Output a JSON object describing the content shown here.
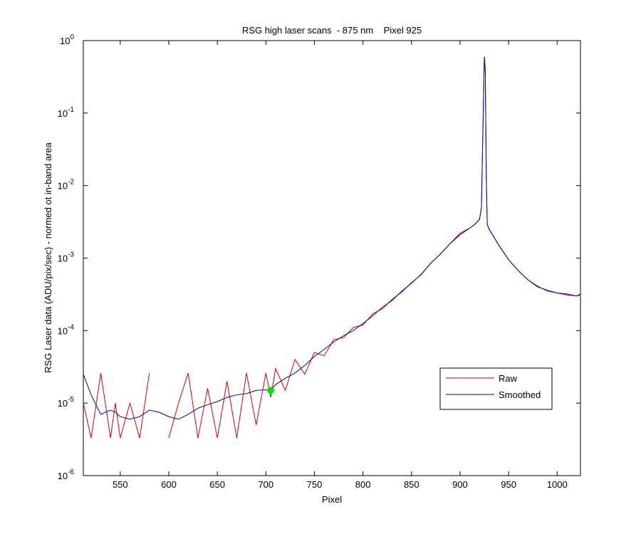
{
  "chart_data": {
    "type": "line",
    "title": "RSG high laser scans  - 875 nm    Pixel 925",
    "xlabel": "Pixel",
    "ylabel": "RSG Laser data (ADU/pix/sec) - normed ot in-band area",
    "log_y": true,
    "grid": false,
    "legend": "right",
    "xlim": [
      512,
      1024
    ],
    "ylim": [
      1e-06,
      1
    ],
    "xticks": [
      550,
      600,
      650,
      700,
      750,
      800,
      850,
      900,
      950,
      1000
    ],
    "yticks": [
      {
        "value": 1e-06,
        "label": "10",
        "exponent": "-6"
      },
      {
        "value": 1e-05,
        "label": "10",
        "exponent": "-5"
      },
      {
        "value": 0.0001,
        "label": "10",
        "exponent": "-4"
      },
      {
        "value": 0.001,
        "label": "10",
        "exponent": "-3"
      },
      {
        "value": 0.01,
        "label": "10",
        "exponent": "-2"
      },
      {
        "value": 0.1,
        "label": "10",
        "exponent": "-1"
      },
      {
        "value": 1,
        "label": "10",
        "exponent": "0"
      }
    ],
    "x": [
      512,
      520,
      530,
      540,
      545,
      550,
      560,
      570,
      580,
      590,
      600,
      610,
      620,
      630,
      640,
      650,
      660,
      670,
      680,
      690,
      700,
      705,
      710,
      720,
      730,
      740,
      750,
      760,
      770,
      780,
      790,
      800,
      810,
      820,
      830,
      840,
      850,
      860,
      870,
      880,
      890,
      900,
      910,
      915,
      920,
      922,
      924,
      925,
      926,
      927,
      928,
      930,
      940,
      950,
      960,
      970,
      980,
      990,
      1000,
      1010,
      1020,
      1024
    ],
    "series": [
      {
        "name": "Raw",
        "color": "#d00000",
        "values": [
          1e-05,
          3.3e-06,
          2.6e-05,
          3.3e-06,
          1e-05,
          3.3e-06,
          1e-05,
          3.3e-06,
          2.6e-05,
          null,
          3.3e-06,
          1e-05,
          2.6e-05,
          3.3e-06,
          1.6e-05,
          3.3e-06,
          2e-05,
          3.3e-06,
          2.6e-05,
          5e-06,
          2.6e-05,
          1.2e-05,
          3e-05,
          1.5e-05,
          4e-05,
          2.5e-05,
          5e-05,
          4.5e-05,
          7.5e-05,
          8e-05,
          0.00011,
          0.00012,
          0.00017,
          0.0002,
          0.00027,
          0.00034,
          0.00046,
          0.00059,
          0.00086,
          0.00114,
          0.0016,
          0.0022,
          0.0026,
          0.0029,
          0.0034,
          0.005,
          0.12,
          0.6,
          0.38,
          0.013,
          0.0029,
          0.0025,
          0.0015,
          0.00095,
          0.00067,
          0.0005,
          0.00041,
          0.00035,
          0.00033,
          0.00031,
          0.0003,
          0.00032
        ]
      },
      {
        "name": "Smoothed",
        "color": "#0000c0",
        "values": [
          2.5e-05,
          1.3e-05,
          7e-06,
          8e-06,
          7.5e-06,
          6.5e-06,
          6e-06,
          6.5e-06,
          8e-06,
          7.5e-06,
          6.5e-06,
          6e-06,
          7e-06,
          8.5e-06,
          9.5e-06,
          1.05e-05,
          1.2e-05,
          1.3e-05,
          1.35e-05,
          1.5e-05,
          1.52e-05,
          1.5e-05,
          1.8e-05,
          2.2e-05,
          2.6e-05,
          3.3e-05,
          4.4e-05,
          5.5e-05,
          7e-05,
          8.5e-05,
          0.0001,
          0.000125,
          0.00016,
          0.00021,
          0.00026,
          0.00035,
          0.00045,
          0.0006,
          0.00085,
          0.00115,
          0.0016,
          0.0021,
          0.0026,
          0.0029,
          0.0034,
          0.005,
          0.12,
          0.6,
          0.38,
          0.013,
          0.0029,
          0.0025,
          0.0015,
          0.00095,
          0.00067,
          0.0005,
          0.0004,
          0.00036,
          0.00033,
          0.00032,
          0.0003,
          0.00031
        ]
      }
    ],
    "marker": {
      "x": 705,
      "y": 1.5e-05,
      "color": "#00e000"
    }
  }
}
